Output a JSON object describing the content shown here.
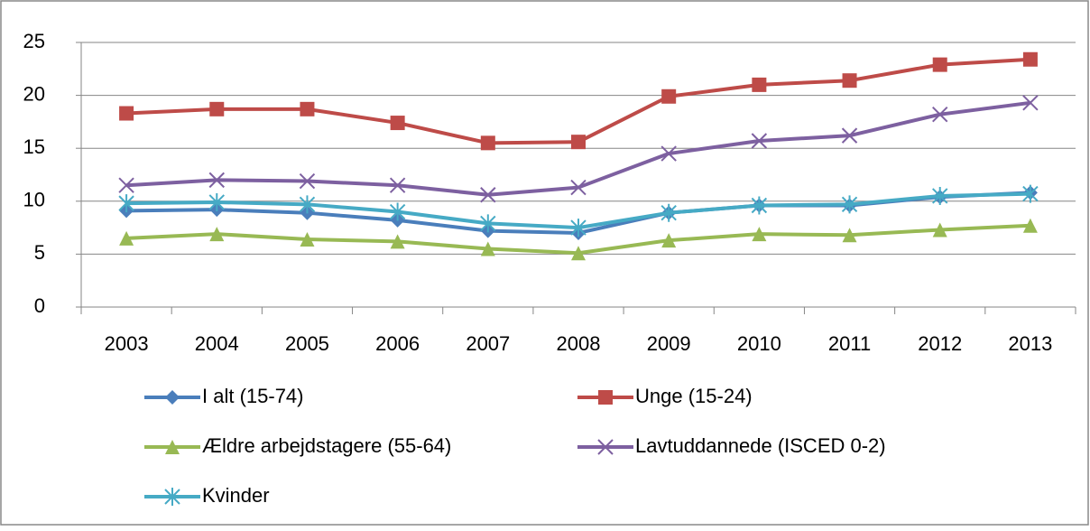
{
  "chart_data": {
    "type": "line",
    "categories": [
      "2003",
      "2004",
      "2005",
      "2006",
      "2007",
      "2008",
      "2009",
      "2010",
      "2011",
      "2012",
      "2013"
    ],
    "series": [
      {
        "name": "I alt (15-74)",
        "color": "#4a7ebb",
        "marker": "diamond",
        "values": [
          9.1,
          9.2,
          8.9,
          8.2,
          7.2,
          7.0,
          8.9,
          9.6,
          9.6,
          10.4,
          10.8
        ]
      },
      {
        "name": "Unge (15-24)",
        "color": "#be4b48",
        "marker": "square",
        "values": [
          18.3,
          18.7,
          18.7,
          17.4,
          15.5,
          15.6,
          19.9,
          21.0,
          21.4,
          22.9,
          23.4
        ]
      },
      {
        "name": "Ældre arbejdstagere (55-64)",
        "color": "#98b954",
        "marker": "triangle",
        "values": [
          6.5,
          6.9,
          6.4,
          6.2,
          5.5,
          5.1,
          6.3,
          6.9,
          6.8,
          7.3,
          7.7
        ]
      },
      {
        "name": "Lavtuddannede (ISCED 0-2)",
        "color": "#7d60a0",
        "marker": "x",
        "values": [
          11.5,
          12.0,
          11.9,
          11.5,
          10.6,
          11.3,
          14.5,
          15.7,
          16.2,
          18.2,
          19.3
        ]
      },
      {
        "name": "Kvinder",
        "color": "#46aac5",
        "marker": "asterisk",
        "values": [
          9.8,
          9.9,
          9.7,
          9.0,
          7.9,
          7.5,
          8.9,
          9.6,
          9.7,
          10.5,
          10.7
        ]
      }
    ],
    "ylim": [
      0,
      25
    ],
    "yticks": [
      0,
      5,
      10,
      15,
      20,
      25
    ],
    "grid": true,
    "legend": "bottom"
  }
}
